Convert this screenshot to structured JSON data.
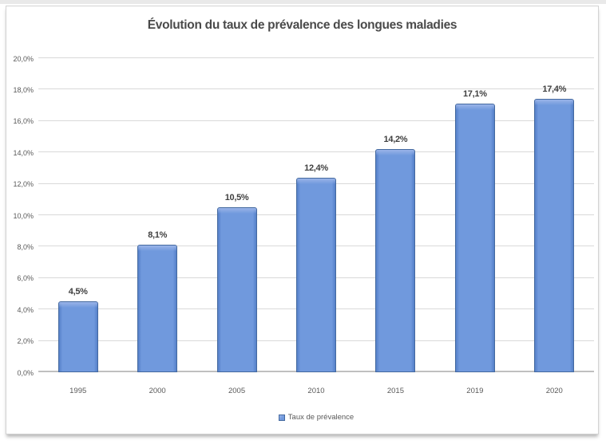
{
  "chart_data": {
    "type": "bar",
    "title": "Évolution du taux de prévalence des longues maladies",
    "categories": [
      "1995",
      "2000",
      "2005",
      "2010",
      "2015",
      "2019",
      "2020"
    ],
    "series": [
      {
        "name": "Taux de prévalence",
        "values": [
          4.5,
          8.1,
          10.5,
          12.4,
          14.2,
          17.1,
          17.4
        ],
        "value_labels": [
          "4,5%",
          "8,1%",
          "10,5%",
          "12,4%",
          "14,2%",
          "17,1%",
          "17,4%"
        ]
      }
    ],
    "xlabel": "",
    "ylabel": "",
    "ylim": [
      0,
      20
    ],
    "y_tick_labels": [
      "0,0%",
      "2,0%",
      "4,0%",
      "6,0%",
      "8,0%",
      "10,0%",
      "12,0%",
      "14,0%",
      "16,0%",
      "18,0%",
      "20,0%"
    ],
    "grid": true,
    "legend_position": "bottom",
    "colors": {
      "bar_fill": "#7099dd",
      "bar_edge": "#44699f",
      "bar_edge_shade": "#5580c9",
      "bar_highlight": "#9ab4e8",
      "gridline": "#d9d9d9",
      "axis_line": "#bfbfbf",
      "title_text": "#4a4a4a",
      "axis_text": "#595959",
      "label_text": "#3f3f3f"
    }
  }
}
